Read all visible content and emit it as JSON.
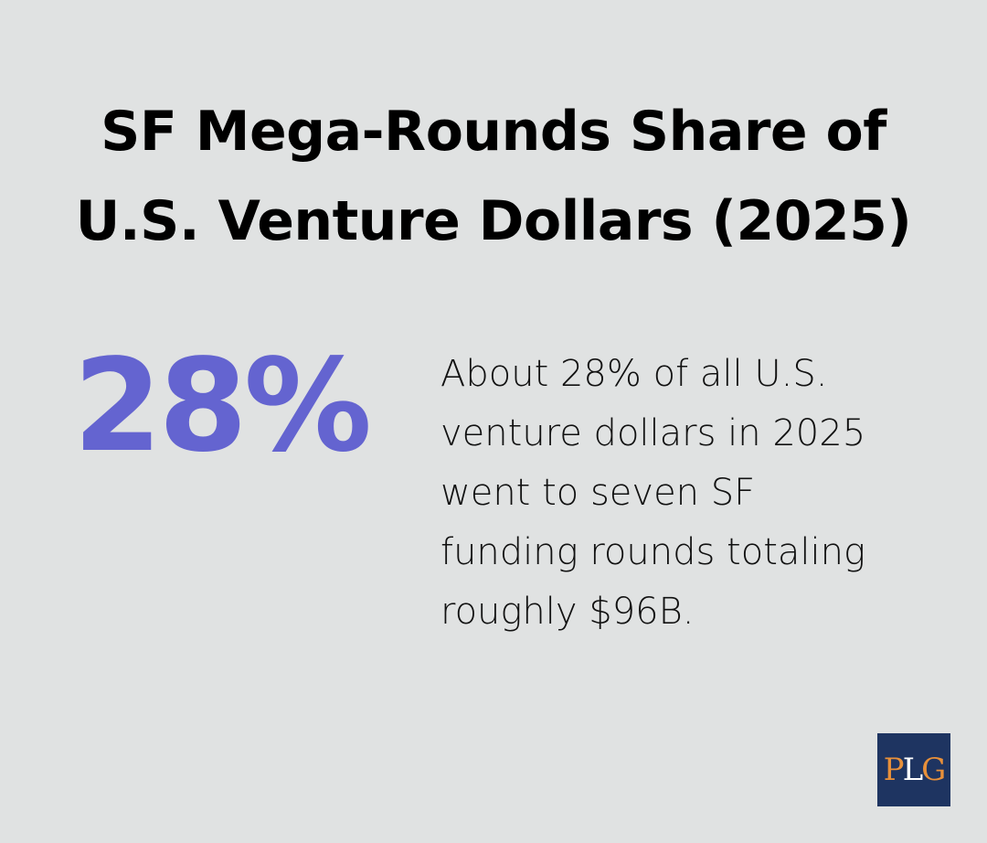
{
  "title": [
    "SF Mega-Rounds Share of",
    "U.S. Venture Dollars (2025)"
  ],
  "stat": "28%",
  "description": [
    "About 28% of all U.S.",
    "venture dollars in 2025",
    "went to seven SF",
    "funding rounds totaling",
    "roughly $96B."
  ],
  "logo": "PLG"
}
